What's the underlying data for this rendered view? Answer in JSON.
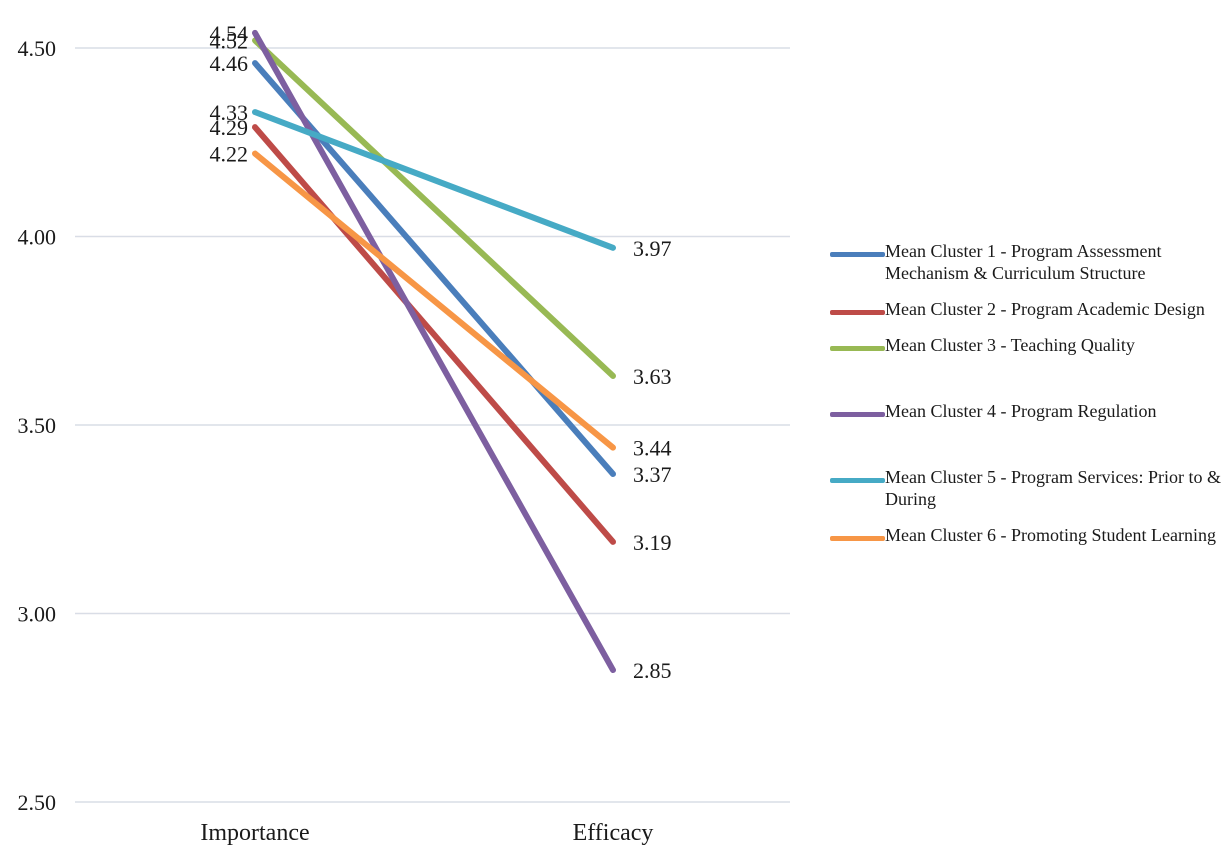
{
  "chart_data": {
    "type": "line",
    "categories": [
      "Importance",
      "Efficacy"
    ],
    "ylim": [
      2.5,
      4.5
    ],
    "yticks": [
      "2.50",
      "3.00",
      "3.50",
      "4.00",
      "4.50"
    ],
    "grid": true,
    "legend_position": "right",
    "series": [
      {
        "name": "Mean Cluster 1 - Program Assessment Mechanism & Curriculum Structure",
        "values": [
          4.46,
          3.37
        ],
        "labels": [
          "4.46",
          "3.37"
        ],
        "color": "#4a7ebb"
      },
      {
        "name": "Mean Cluster 2 - Program Academic Design",
        "values": [
          4.29,
          3.19
        ],
        "labels": [
          "4.29",
          "3.19"
        ],
        "color": "#be4b48"
      },
      {
        "name": "Mean Cluster 3 - Teaching Quality",
        "values": [
          4.52,
          3.63
        ],
        "labels": [
          "4.52",
          "3.63"
        ],
        "color": "#98b954"
      },
      {
        "name": "Mean Cluster 4 - Program Regulation",
        "values": [
          4.54,
          2.85
        ],
        "labels": [
          "4.54",
          "2.85"
        ],
        "color": "#7d5fa0"
      },
      {
        "name": "Mean Cluster 5 - Program Services: Prior to & During",
        "values": [
          4.33,
          3.97
        ],
        "labels": [
          "4.33",
          "3.97"
        ],
        "color": "#46aac5"
      },
      {
        "name": "Mean Cluster 6 - Promoting Student Learning",
        "values": [
          4.22,
          3.44
        ],
        "labels": [
          "4.22",
          "3.44"
        ],
        "color": "#f79646"
      }
    ]
  }
}
